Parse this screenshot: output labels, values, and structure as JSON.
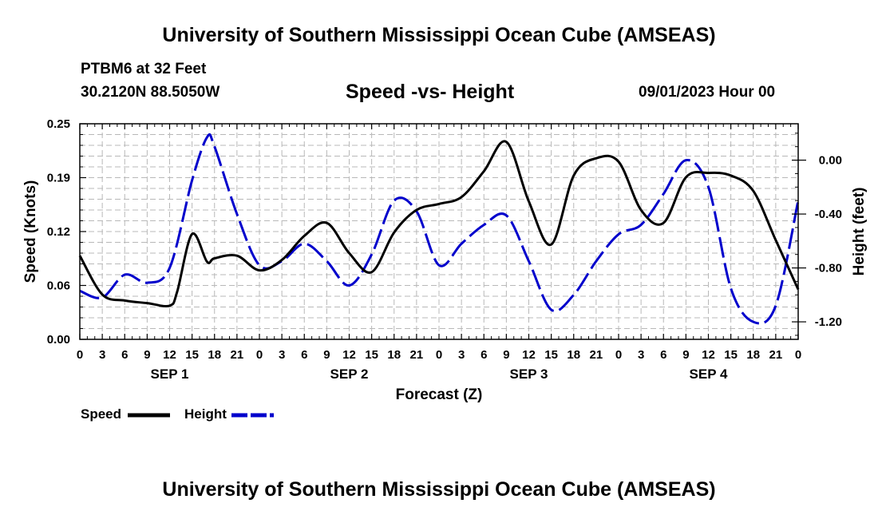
{
  "header": {
    "title": "University of Southern Mississippi Ocean Cube (AMSEAS)",
    "station": "PTBM6 at 32 Feet",
    "coordinates": "30.2120N  88.5050W",
    "subtitle": "Speed -vs- Height",
    "datetime": "09/01/2023 Hour 00"
  },
  "footer": {
    "title": "University of Southern Mississippi Ocean Cube (AMSEAS)"
  },
  "legend": {
    "speed": "Speed",
    "height": "Height"
  },
  "chart_data": {
    "type": "line",
    "title": "Speed -vs- Height",
    "xlabel": "Forecast (Z)",
    "ylabel": "Speed (Knots)",
    "ylabel_right": "Height (feet)",
    "xlim": [
      0,
      96
    ],
    "ylim": [
      0,
      0.25
    ],
    "ylim_right": [
      -1.33,
      0.27
    ],
    "x_ticks": [
      "0",
      "3",
      "6",
      "9",
      "12",
      "15",
      "18",
      "21",
      "0",
      "3",
      "6",
      "9",
      "12",
      "15",
      "18",
      "21",
      "0",
      "3",
      "6",
      "9",
      "12",
      "15",
      "18",
      "21",
      "0",
      "3",
      "6",
      "9",
      "12",
      "15",
      "18",
      "21",
      "0"
    ],
    "y_ticks": [
      "0.00",
      "0.06",
      "0.12",
      "0.19",
      "0.25"
    ],
    "y_ticks_right": [
      "0.00",
      "-0.40",
      "-0.80",
      "-1.20"
    ],
    "days": [
      "SEP 1",
      "SEP 2",
      "SEP 3",
      "SEP 4"
    ],
    "grid": true,
    "legend_position": "bottom-left",
    "series": [
      {
        "name": "Speed",
        "axis": "left",
        "color": "#000000",
        "style": "solid",
        "x": [
          0,
          3,
          6,
          9,
          12,
          13,
          15,
          17,
          18,
          21,
          24,
          27,
          30,
          33,
          36,
          39,
          42,
          45,
          48,
          51,
          54,
          57,
          60,
          63,
          66,
          69,
          72,
          75,
          78,
          81,
          84,
          87,
          90,
          93,
          96
        ],
        "y": [
          0.097,
          0.052,
          0.045,
          0.042,
          0.039,
          0.055,
          0.122,
          0.09,
          0.094,
          0.097,
          0.08,
          0.092,
          0.12,
          0.135,
          0.1,
          0.078,
          0.124,
          0.15,
          0.157,
          0.165,
          0.195,
          0.229,
          0.16,
          0.11,
          0.19,
          0.21,
          0.206,
          0.15,
          0.135,
          0.188,
          0.193,
          0.19,
          0.172,
          0.115,
          0.058
        ]
      },
      {
        "name": "Height",
        "axis": "right",
        "color": "#0000cc",
        "style": "dashed",
        "x": [
          0,
          3,
          6,
          9,
          12,
          15,
          17,
          18,
          21,
          24,
          27,
          30,
          33,
          36,
          39,
          42,
          45,
          48,
          51,
          54,
          57,
          60,
          63,
          66,
          69,
          72,
          75,
          78,
          81,
          84,
          87,
          90,
          93,
          96
        ],
        "y": [
          -0.97,
          -1.02,
          -0.85,
          -0.91,
          -0.8,
          -0.15,
          0.17,
          0.1,
          -0.4,
          -0.78,
          -0.75,
          -0.62,
          -0.75,
          -0.93,
          -0.7,
          -0.3,
          -0.38,
          -0.78,
          -0.62,
          -0.48,
          -0.41,
          -0.75,
          -1.11,
          -1.0,
          -0.75,
          -0.55,
          -0.48,
          -0.25,
          0.0,
          -0.2,
          -0.95,
          -1.2,
          -1.08,
          -0.3
        ]
      }
    ]
  }
}
